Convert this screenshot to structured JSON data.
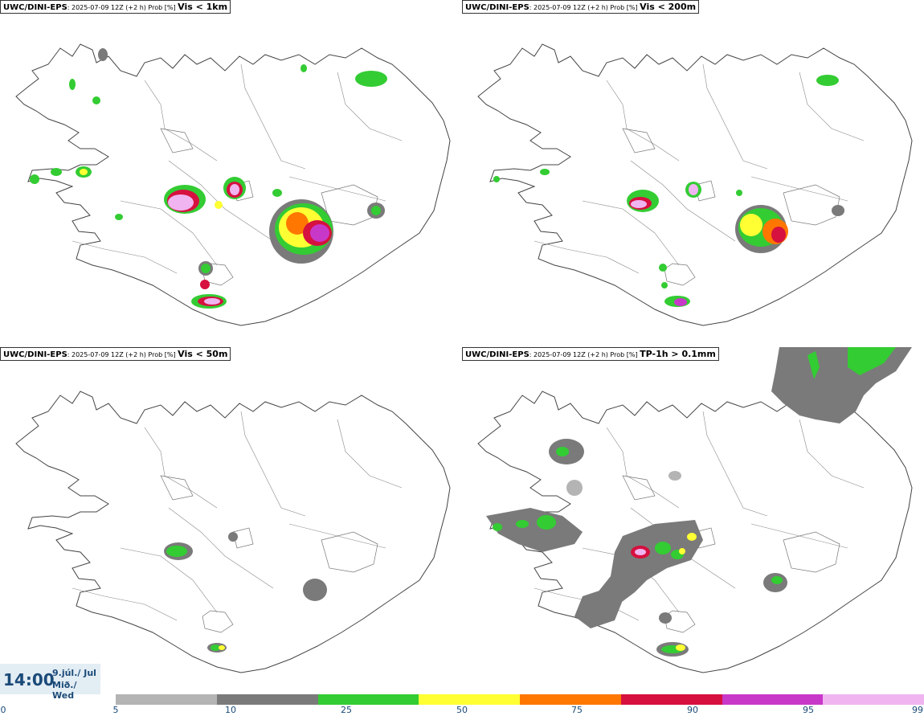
{
  "panels": [
    {
      "source": "UWC/DINI-EPS",
      "meta": ": 2025-07-09 12Z (+2 h) Prob [%] ",
      "variable": "Vis < 1km"
    },
    {
      "source": "UWC/DINI-EPS",
      "meta": ": 2025-07-09 12Z (+2 h) Prob [%] ",
      "variable": "Vis < 200m"
    },
    {
      "source": "UWC/DINI-EPS",
      "meta": ": 2025-07-09 12Z (+2 h) Prob [%] ",
      "variable": "Vis < 50m"
    },
    {
      "source": "UWC/DINI-EPS",
      "meta": ": 2025-07-09 12Z (+2 h) Prob [%] ",
      "variable": "TP-1h > 0.1mm"
    }
  ],
  "time": {
    "main": "14:00",
    "date_line1": "9.júl./ Jul",
    "date_line2": "Mið./ Wed"
  },
  "colorbar": {
    "ticks": [
      "0",
      "5",
      "10",
      "25",
      "50",
      "75",
      "90",
      "95",
      "99"
    ],
    "bin_colors": [
      "#b4b4b4",
      "#7a7a7a",
      "#33cc33",
      "#ffff33",
      "#ff7700",
      "#d6103f",
      "#c838c8",
      "#f0b4f0"
    ]
  },
  "colors": {
    "gray_light": "#b4b4b4",
    "gray_dark": "#7a7a7a",
    "green": "#33cc33",
    "yellow": "#ffff33",
    "orange": "#ff7700",
    "red": "#d6103f",
    "magenta": "#c838c8",
    "pink": "#f0b4f0"
  }
}
